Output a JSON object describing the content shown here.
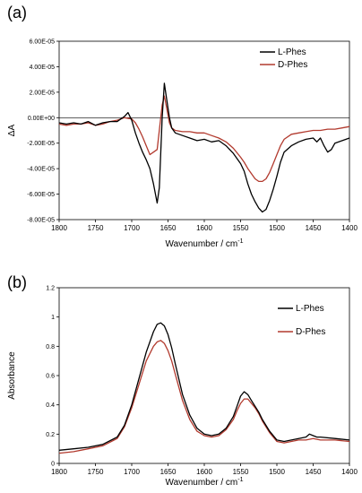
{
  "colors": {
    "L-Phes": "#000000",
    "D-Phes": "#b23a2e"
  },
  "chart_data": [
    {
      "panel": "(a)",
      "type": "line",
      "xlabel": "Wavenumber / cm",
      "xlabel_sup": "-1",
      "ylabel": "ΔA",
      "xlim": [
        1800,
        1400
      ],
      "ylim": [
        -8e-05,
        6e-05
      ],
      "x_ticks": [
        "1800",
        "1750",
        "1700",
        "1650",
        "1600",
        "1550",
        "1500",
        "1450",
        "1400"
      ],
      "y_ticks": [
        "6.00E-05",
        "4.00E-05",
        "2.00E-05",
        "0.00E+00",
        "-2.00E-05",
        "-4.00E-05",
        "-6.00E-05",
        "-8.00E-05"
      ],
      "legend_position": "top-right",
      "series": [
        {
          "name": "L-Phes",
          "x": [
            1800,
            1790,
            1780,
            1770,
            1760,
            1750,
            1740,
            1730,
            1720,
            1710,
            1705,
            1700,
            1695,
            1690,
            1685,
            1680,
            1675,
            1670,
            1665,
            1662,
            1658,
            1655,
            1652,
            1648,
            1645,
            1640,
            1630,
            1620,
            1610,
            1600,
            1590,
            1580,
            1570,
            1560,
            1550,
            1545,
            1540,
            1535,
            1530,
            1525,
            1520,
            1515,
            1510,
            1505,
            1500,
            1495,
            1490,
            1480,
            1470,
            1460,
            1450,
            1445,
            1440,
            1435,
            1430,
            1425,
            1420,
            1410,
            1400
          ],
          "y": [
            -4e-06,
            -5e-06,
            -4e-06,
            -5e-06,
            -3e-06,
            -6e-06,
            -4e-06,
            -3e-06,
            -3e-06,
            1e-06,
            4e-06,
            -2e-06,
            -1.2e-05,
            -2e-05,
            -2.7e-05,
            -3.3e-05,
            -4e-05,
            -5.2e-05,
            -6.7e-05,
            -5.5e-05,
            0,
            2.7e-05,
            1.5e-05,
            0,
            -8e-06,
            -1.2e-05,
            -1.4e-05,
            -1.6e-05,
            -1.8e-05,
            -1.7e-05,
            -1.9e-05,
            -1.8e-05,
            -2.2e-05,
            -2.8e-05,
            -3.6e-05,
            -4.2e-05,
            -5.2e-05,
            -6e-05,
            -6.6e-05,
            -7.1e-05,
            -7.4e-05,
            -7.2e-05,
            -6.5e-05,
            -5.6e-05,
            -4.6e-05,
            -3.5e-05,
            -2.7e-05,
            -2.2e-05,
            -1.9e-05,
            -1.7e-05,
            -1.6e-05,
            -1.9e-05,
            -1.6e-05,
            -2.2e-05,
            -2.7e-05,
            -2.5e-05,
            -2e-05,
            -1.8e-05,
            -1.6e-05
          ]
        },
        {
          "name": "D-Phes",
          "x": [
            1800,
            1790,
            1780,
            1770,
            1760,
            1750,
            1740,
            1730,
            1720,
            1710,
            1700,
            1695,
            1690,
            1685,
            1680,
            1675,
            1670,
            1665,
            1662,
            1658,
            1655,
            1652,
            1648,
            1645,
            1640,
            1630,
            1620,
            1610,
            1600,
            1590,
            1580,
            1570,
            1560,
            1550,
            1545,
            1540,
            1535,
            1530,
            1525,
            1520,
            1515,
            1510,
            1505,
            1500,
            1495,
            1490,
            1480,
            1470,
            1460,
            1450,
            1440,
            1430,
            1420,
            1410,
            1400
          ],
          "y": [
            -5e-06,
            -6e-06,
            -5e-06,
            -5e-06,
            -4e-06,
            -6e-06,
            -5e-06,
            -3e-06,
            -2e-06,
            0,
            -1e-06,
            -4e-06,
            -9e-06,
            -1.5e-05,
            -2.2e-05,
            -2.9e-05,
            -2.7e-05,
            -2.5e-05,
            -1e-05,
            1e-05,
            1.7e-05,
            8e-06,
            -4e-06,
            -8e-06,
            -1e-05,
            -1.1e-05,
            -1.1e-05,
            -1.2e-05,
            -1.2e-05,
            -1.4e-05,
            -1.6e-05,
            -1.9e-05,
            -2.4e-05,
            -3.1e-05,
            -3.5e-05,
            -4e-05,
            -4.4e-05,
            -4.8e-05,
            -5e-05,
            -5e-05,
            -4.8e-05,
            -4.3e-05,
            -3.6e-05,
            -2.9e-05,
            -2.2e-05,
            -1.7e-05,
            -1.3e-05,
            -1.2e-05,
            -1.1e-05,
            -1e-05,
            -1e-05,
            -9e-06,
            -9e-06,
            -8e-06,
            -7e-06
          ]
        }
      ]
    },
    {
      "panel": "(b)",
      "type": "line",
      "xlabel": "Wavenumber / cm",
      "xlabel_sup": "-1",
      "ylabel": "Absorbance",
      "xlim": [
        1800,
        1400
      ],
      "ylim": [
        0,
        1.2
      ],
      "x_ticks": [
        "1800",
        "1750",
        "1700",
        "1650",
        "1600",
        "1550",
        "1500",
        "1450",
        "1400"
      ],
      "y_ticks": [
        "1.2",
        "1",
        "0.8",
        "0.6",
        "0.4",
        "0.2",
        "0"
      ],
      "legend_position": "top-right",
      "series": [
        {
          "name": "L-Phes",
          "x": [
            1800,
            1780,
            1760,
            1740,
            1720,
            1710,
            1700,
            1690,
            1680,
            1670,
            1665,
            1660,
            1655,
            1650,
            1645,
            1640,
            1630,
            1620,
            1610,
            1600,
            1590,
            1580,
            1570,
            1560,
            1555,
            1550,
            1545,
            1540,
            1535,
            1530,
            1525,
            1520,
            1510,
            1500,
            1490,
            1480,
            1470,
            1460,
            1455,
            1450,
            1445,
            1440,
            1420,
            1400
          ],
          "y": [
            0.09,
            0.1,
            0.11,
            0.13,
            0.18,
            0.26,
            0.4,
            0.58,
            0.76,
            0.9,
            0.95,
            0.96,
            0.94,
            0.88,
            0.79,
            0.68,
            0.47,
            0.33,
            0.24,
            0.2,
            0.19,
            0.2,
            0.24,
            0.32,
            0.39,
            0.46,
            0.49,
            0.47,
            0.43,
            0.39,
            0.35,
            0.3,
            0.22,
            0.16,
            0.15,
            0.16,
            0.17,
            0.18,
            0.2,
            0.19,
            0.18,
            0.18,
            0.17,
            0.16
          ]
        },
        {
          "name": "D-Phes",
          "x": [
            1800,
            1780,
            1760,
            1740,
            1720,
            1710,
            1700,
            1690,
            1680,
            1670,
            1665,
            1660,
            1655,
            1650,
            1645,
            1640,
            1630,
            1620,
            1610,
            1600,
            1590,
            1580,
            1570,
            1560,
            1555,
            1550,
            1545,
            1540,
            1535,
            1530,
            1525,
            1520,
            1510,
            1500,
            1490,
            1480,
            1470,
            1460,
            1450,
            1440,
            1420,
            1400
          ],
          "y": [
            0.07,
            0.08,
            0.1,
            0.12,
            0.17,
            0.25,
            0.38,
            0.54,
            0.7,
            0.8,
            0.83,
            0.84,
            0.82,
            0.77,
            0.7,
            0.61,
            0.43,
            0.3,
            0.22,
            0.19,
            0.18,
            0.19,
            0.23,
            0.3,
            0.36,
            0.41,
            0.44,
            0.44,
            0.41,
            0.38,
            0.34,
            0.29,
            0.21,
            0.15,
            0.14,
            0.15,
            0.16,
            0.16,
            0.17,
            0.16,
            0.16,
            0.15
          ]
        }
      ]
    }
  ]
}
